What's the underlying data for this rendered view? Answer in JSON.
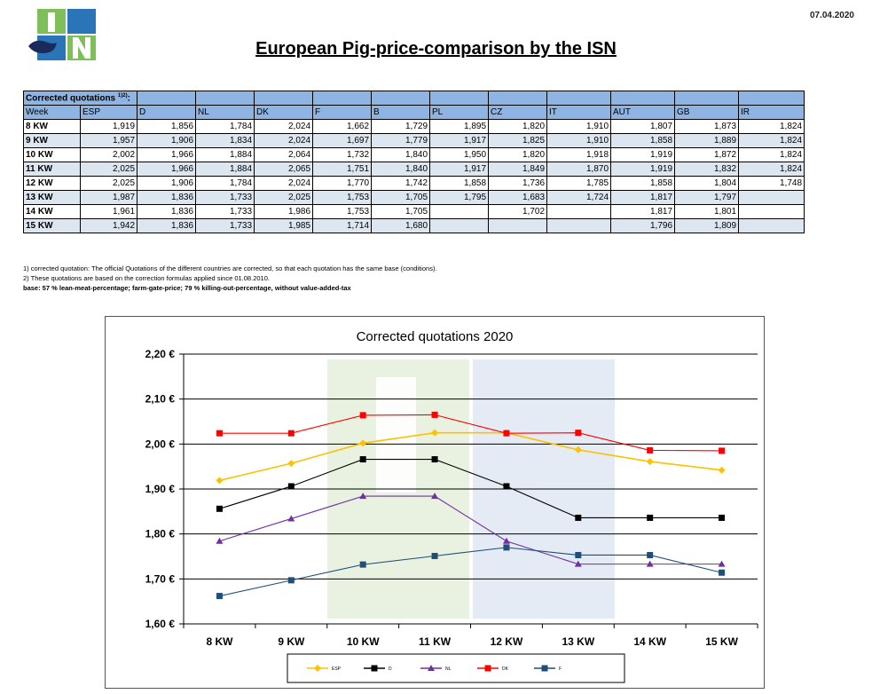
{
  "header": {
    "logo_text": "ISN",
    "date": "07.04.2020",
    "title": "European Pig-price-comparison by the ISN"
  },
  "table": {
    "caption": "Corrected quotations",
    "caption_sup": "1)2)",
    "caption_suffix": ":",
    "columns": [
      "Week",
      "ESP",
      "D",
      "NL",
      "DK",
      "F",
      "B",
      "PL",
      "CZ",
      "IT",
      "AUT",
      "GB",
      "IR"
    ],
    "rows": [
      [
        "8 KW",
        "1,919",
        "1,856",
        "1,784",
        "2,024",
        "1,662",
        "1,729",
        "1,895",
        "1,820",
        "1,910",
        "1,807",
        "1,873",
        "1,824"
      ],
      [
        "9 KW",
        "1,957",
        "1,906",
        "1,834",
        "2,024",
        "1,697",
        "1,779",
        "1,917",
        "1,825",
        "1,910",
        "1,858",
        "1,889",
        "1,824"
      ],
      [
        "10 KW",
        "2,002",
        "1,966",
        "1,884",
        "2,064",
        "1,732",
        "1,840",
        "1,950",
        "1,820",
        "1,918",
        "1,919",
        "1,872",
        "1,824"
      ],
      [
        "11 KW",
        "2,025",
        "1,966",
        "1,884",
        "2,065",
        "1,751",
        "1,840",
        "1,917",
        "1,849",
        "1,870",
        "1,919",
        "1,832",
        "1,824"
      ],
      [
        "12 KW",
        "2,025",
        "1,906",
        "1,784",
        "2,024",
        "1,770",
        "1,742",
        "1,858",
        "1,736",
        "1,785",
        "1,858",
        "1,804",
        "1,748"
      ],
      [
        "13 KW",
        "1,987",
        "1,836",
        "1,733",
        "2,025",
        "1,753",
        "1,705",
        "1,795",
        "1,683",
        "1,724",
        "1,817",
        "1,797",
        ""
      ],
      [
        "14 KW",
        "1,961",
        "1,836",
        "1,733",
        "1,986",
        "1,753",
        "1,705",
        "",
        "1,702",
        "",
        "1,817",
        "1,801",
        ""
      ],
      [
        "15 KW",
        "1,942",
        "1,836",
        "1,733",
        "1,985",
        "1,714",
        "1,680",
        "",
        "",
        "",
        "1,796",
        "1,809",
        ""
      ]
    ]
  },
  "notes": [
    "1) corrected quotation: The official Quotations of the different countries are corrected, so that each quotation has the same base (conditions).",
    "2) These quotations are based on the correction formulas applied since 01.08.2010.",
    "base: 57 % lean-meat-percentage; farm-gate-price; 79 % killing-out-percentage, without value-added-tax"
  ],
  "chart_data": {
    "type": "line",
    "title": "Corrected quotations 2020",
    "categories": [
      "8 KW",
      "9 KW",
      "10 KW",
      "11 KW",
      "12 KW",
      "13 KW",
      "14 KW",
      "15 KW"
    ],
    "ylim": [
      1.6,
      2.2
    ],
    "yticks": [
      1.6,
      1.7,
      1.8,
      1.9,
      2.0,
      2.1,
      2.2
    ],
    "ytick_labels": [
      "1,60 €",
      "1,70 €",
      "1,80 €",
      "1,90 €",
      "2,00 €",
      "2,10 €",
      "2,20 €"
    ],
    "grid": true,
    "legend_position": "bottom",
    "series": [
      {
        "name": "ESP",
        "color": "#ffc000",
        "marker": "diamond",
        "values": [
          1.919,
          1.957,
          2.002,
          2.025,
          2.025,
          1.987,
          1.961,
          1.942
        ]
      },
      {
        "name": "D",
        "color": "#000000",
        "marker": "square",
        "values": [
          1.856,
          1.906,
          1.966,
          1.966,
          1.906,
          1.836,
          1.836,
          1.836
        ]
      },
      {
        "name": "NL",
        "color": "#7030a0",
        "marker": "triangle",
        "values": [
          1.784,
          1.834,
          1.884,
          1.884,
          1.784,
          1.733,
          1.733,
          1.733
        ]
      },
      {
        "name": "DK",
        "color": "#ff0000",
        "marker": "square",
        "values": [
          2.024,
          2.024,
          2.064,
          2.065,
          2.024,
          2.025,
          1.986,
          1.985
        ]
      },
      {
        "name": "F",
        "color": "#1f4e79",
        "marker": "square",
        "values": [
          1.662,
          1.697,
          1.732,
          1.751,
          1.77,
          1.753,
          1.753,
          1.714
        ]
      }
    ]
  }
}
